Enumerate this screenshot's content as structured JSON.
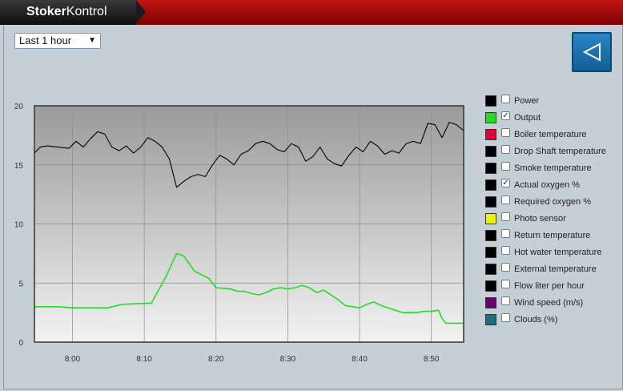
{
  "app": {
    "title_bold": "Stoker",
    "title_light": "Kontrol"
  },
  "range_select": {
    "value": "Last 1 hour",
    "arrow": "▼"
  },
  "back_button": {
    "icon": "back-triangle-icon"
  },
  "legend": [
    {
      "label": "Power",
      "color": "#000000",
      "checked": false
    },
    {
      "label": "Output",
      "color": "#22dd22",
      "checked": true
    },
    {
      "label": "Boiler temperature",
      "color": "#e0003c",
      "checked": false
    },
    {
      "label": "Drop Shaft temperature",
      "color": "#000000",
      "checked": false
    },
    {
      "label": "Smoke temperature",
      "color": "#000000",
      "checked": false
    },
    {
      "label": "Actual oxygen %",
      "color": "#000000",
      "checked": true
    },
    {
      "label": "Required oxygen %",
      "color": "#000000",
      "checked": false
    },
    {
      "label": "Photo sensor",
      "color": "#f2f200",
      "checked": false
    },
    {
      "label": "Return temperature",
      "color": "#000000",
      "checked": false
    },
    {
      "label": "Hot water temperature",
      "color": "#000000",
      "checked": false
    },
    {
      "label": "External temperature",
      "color": "#000000",
      "checked": false
    },
    {
      "label": "Flow liter per hour",
      "color": "#000000",
      "checked": false
    },
    {
      "label": "Wind speed (m/s)",
      "color": "#6a0070",
      "checked": false
    },
    {
      "label": "Clouds (%)",
      "color": "#1c6e78",
      "checked": false
    }
  ],
  "chart_data": {
    "type": "line",
    "xlabel": "",
    "ylabel": "",
    "ylim": [
      0,
      20
    ],
    "yticks": [
      0,
      5,
      10,
      15,
      20
    ],
    "xlim": [
      -5.3,
      54.5
    ],
    "xtick_values": [
      0,
      10,
      20,
      30,
      40,
      50
    ],
    "xtick_labels": [
      "8:00",
      "8:10",
      "8:20",
      "8:30",
      "8:40",
      "8:50"
    ],
    "grid": true,
    "series": [
      {
        "name": "Actual oxygen %",
        "color": "#000000",
        "x": [
          -5.3,
          -4.5,
          -3.5,
          -2,
          -0.5,
          0.5,
          1.5,
          2.5,
          3.5,
          4.5,
          5.5,
          6.5,
          7.5,
          8.5,
          9.5,
          10.5,
          11.5,
          12.5,
          13.5,
          14.5,
          15.5,
          16.5,
          17.5,
          18.5,
          19.5,
          20.5,
          21.5,
          22.5,
          23.5,
          24.5,
          25.5,
          26.5,
          27.5,
          28.5,
          29.5,
          30.5,
          31.5,
          32.5,
          33.5,
          34.5,
          35.5,
          36.5,
          37.5,
          38.5,
          39.5,
          40.5,
          41.5,
          42.5,
          43.5,
          44.5,
          45.5,
          46.5,
          47.5,
          48.5,
          49.5,
          50.5,
          51.5,
          52.5,
          53.5,
          54.5
        ],
        "values": [
          16,
          16.5,
          16.6,
          16.5,
          16.4,
          17,
          16.5,
          17.2,
          17.8,
          17.6,
          16.5,
          16.2,
          16.6,
          16,
          16.5,
          17.3,
          17,
          16.5,
          15.5,
          13.1,
          13.6,
          14,
          14.2,
          14,
          15,
          15.8,
          15.5,
          15,
          15.9,
          16.2,
          16.8,
          17,
          16.8,
          16.3,
          16.1,
          16.8,
          16.5,
          15.3,
          15.7,
          16.5,
          15.5,
          15.1,
          14.9,
          15.8,
          16.5,
          16.1,
          17,
          16.6,
          15.9,
          16.2,
          16,
          16.8,
          17,
          16.8,
          18.5,
          18.4,
          17.3,
          18.6,
          18.4,
          17.9
        ]
      },
      {
        "name": "Output",
        "color": "#22dd22",
        "x": [
          -5.3,
          -2,
          0,
          5,
          5.5,
          7,
          11,
          13,
          14.5,
          15.5,
          17,
          18,
          19,
          20,
          22,
          23,
          24,
          25,
          26,
          27,
          28,
          29,
          30,
          31,
          32,
          33,
          34,
          35,
          36,
          37,
          38,
          39,
          40,
          41,
          42,
          43,
          44,
          45,
          46,
          47,
          48,
          49,
          50,
          51,
          51.5,
          52,
          53,
          54.5
        ],
        "values": [
          3,
          3,
          2.9,
          2.9,
          3,
          3.2,
          3.3,
          5.5,
          7.5,
          7.3,
          6,
          5.7,
          5.4,
          4.6,
          4.5,
          4.3,
          4.3,
          4.1,
          4,
          4.2,
          4.5,
          4.6,
          4.5,
          4.6,
          4.8,
          4.6,
          4.2,
          4.4,
          4,
          3.6,
          3.1,
          3,
          2.9,
          3.2,
          3.4,
          3.1,
          2.9,
          2.7,
          2.5,
          2.5,
          2.5,
          2.6,
          2.6,
          2.7,
          2,
          1.6,
          1.6,
          1.6
        ]
      }
    ]
  }
}
